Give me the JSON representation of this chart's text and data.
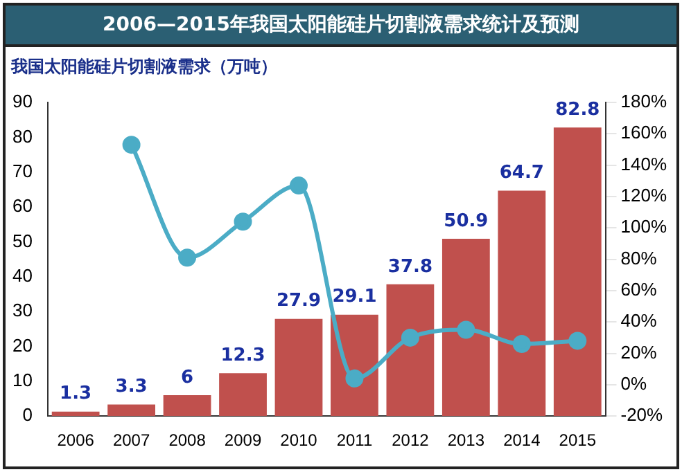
{
  "chart_data": {
    "type": "bar",
    "title": "2006—2015年我国太阳能硅片切割液需求统计及预测",
    "subtitle": "我国太阳能硅片切割液需求（万吨）",
    "categories": [
      "2006",
      "2007",
      "2008",
      "2009",
      "2010",
      "2011",
      "2012",
      "2013",
      "2014",
      "2015"
    ],
    "series": [
      {
        "color": "#c0504d",
        "values": [
          1.3,
          3.3,
          6,
          12.3,
          27.9,
          29.1,
          37.8,
          50.9,
          64.7,
          82.8
        ],
        "value_labels": [
          "1.3",
          "3.3",
          "6",
          "12.3",
          "27.9",
          "29.1",
          "37.8",
          "50.9",
          "64.7",
          "82.8"
        ]
      },
      {
        "type": "line",
        "axis": "y2",
        "color": "#4bacc6",
        "values": [
          null,
          153,
          81,
          104,
          127,
          4,
          30,
          35,
          26,
          28
        ]
      }
    ],
    "ylim": [
      0,
      90
    ],
    "yticks": [
      0,
      10,
      20,
      30,
      40,
      50,
      60,
      70,
      80,
      90
    ],
    "y2lim": [
      -20,
      180
    ],
    "y2ticks": [
      {
        "value": -20,
        "label": "-20%"
      },
      {
        "value": 0,
        "label": "0%"
      },
      {
        "value": 20,
        "label": "20%"
      },
      {
        "value": 40,
        "label": "40%"
      },
      {
        "value": 60,
        "label": "60%"
      },
      {
        "value": 80,
        "label": "80%"
      },
      {
        "value": 100,
        "label": "100%"
      },
      {
        "value": 120,
        "label": "120%"
      },
      {
        "value": 140,
        "label": "140%"
      },
      {
        "value": 160,
        "label": "160%"
      },
      {
        "value": 180,
        "label": "180%"
      }
    ],
    "grid": false,
    "legend": false,
    "marker": "circle",
    "line_style": "solid"
  }
}
